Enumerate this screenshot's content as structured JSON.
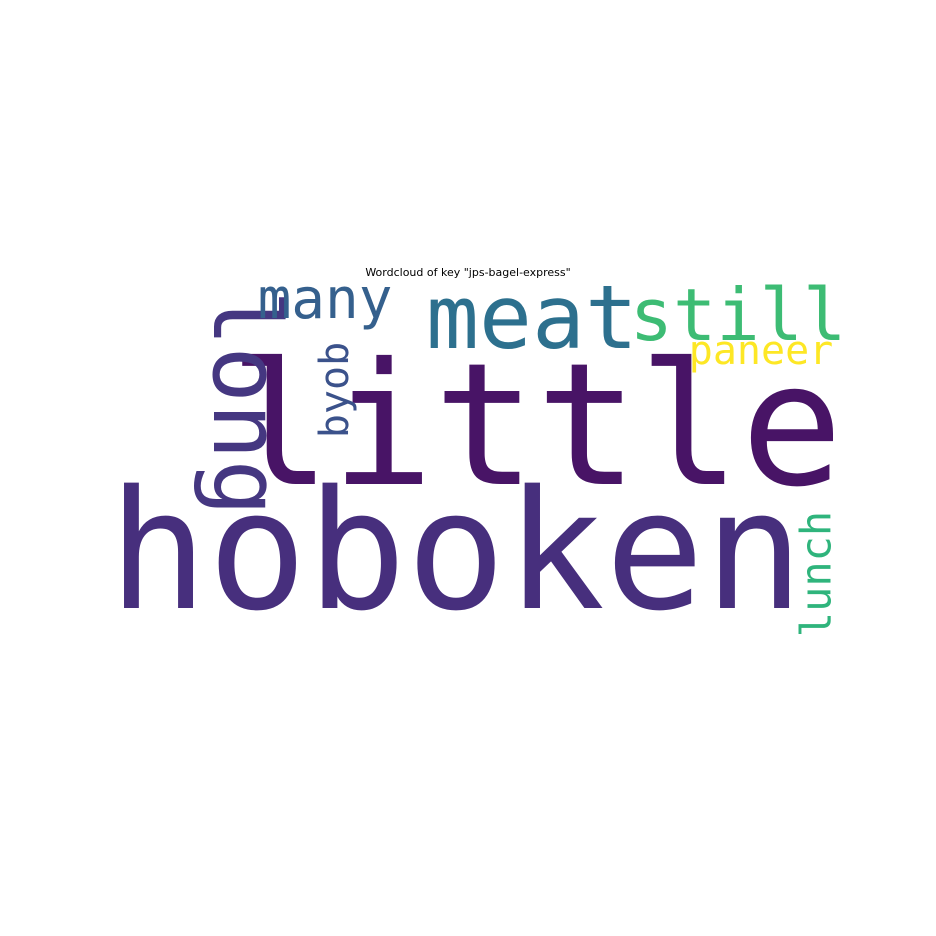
{
  "chart_data": {
    "type": "wordcloud",
    "title": "Wordcloud of key \"jps-bagel-express\"",
    "words": [
      {
        "text": "little",
        "color": "#481466"
      },
      {
        "text": "hoboken",
        "color": "#472f7d"
      },
      {
        "text": "long",
        "color": "#453781"
      },
      {
        "text": "meat",
        "color": "#2d708e"
      },
      {
        "text": "many",
        "color": "#35608d"
      },
      {
        "text": "still",
        "color": "#3dbc74"
      },
      {
        "text": "paneer",
        "color": "#fde725"
      },
      {
        "text": "byob",
        "color": "#3b528b"
      },
      {
        "text": "lunch",
        "color": "#2fb47c"
      }
    ]
  }
}
